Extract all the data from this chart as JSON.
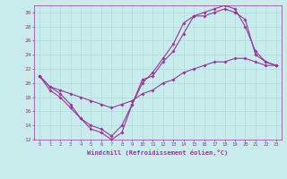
{
  "xlabel": "Windchill (Refroidissement éolien,°C)",
  "background_color": "#c8ecec",
  "line_color": "#993399",
  "grid_color": "#b0d0d0",
  "xlim": [
    -0.5,
    23.5
  ],
  "ylim": [
    12,
    31
  ],
  "xticks": [
    0,
    1,
    2,
    3,
    4,
    5,
    6,
    7,
    8,
    9,
    10,
    11,
    12,
    13,
    14,
    15,
    16,
    17,
    18,
    19,
    20,
    21,
    22,
    23
  ],
  "yticks": [
    12,
    14,
    16,
    18,
    20,
    22,
    24,
    26,
    28,
    30
  ],
  "series": [
    {
      "x": [
        0,
        1,
        2,
        3,
        4,
        5,
        6,
        7,
        8,
        9,
        10,
        11,
        12,
        13,
        14,
        15,
        16,
        17,
        18,
        19,
        20,
        21,
        22,
        23
      ],
      "y": [
        21,
        19,
        18,
        16.5,
        15,
        13.5,
        13,
        12,
        13,
        17,
        20.5,
        21,
        23,
        24.5,
        27,
        29.5,
        29.5,
        30,
        30.5,
        30,
        29,
        24,
        23,
        22.5
      ]
    },
    {
      "x": [
        0,
        1,
        2,
        3,
        4,
        5,
        6,
        7,
        8,
        9,
        10,
        11,
        12,
        13,
        14,
        15,
        16,
        17,
        18,
        19,
        20,
        21,
        22,
        23
      ],
      "y": [
        21,
        19.5,
        18.5,
        17,
        15,
        14,
        13.5,
        12.5,
        14,
        17,
        20,
        21.5,
        23.5,
        25.5,
        28.5,
        29.5,
        30,
        30.5,
        31,
        30.5,
        28,
        24.5,
        23,
        22.5
      ]
    },
    {
      "x": [
        0,
        1,
        2,
        3,
        4,
        5,
        6,
        7,
        8,
        9,
        10,
        11,
        12,
        13,
        14,
        15,
        16,
        17,
        18,
        19,
        20,
        21,
        22,
        23
      ],
      "y": [
        21,
        19.5,
        19,
        18.5,
        18,
        17.5,
        17,
        16.5,
        17,
        17.5,
        18.5,
        19,
        20,
        20.5,
        21.5,
        22,
        22.5,
        23,
        23,
        23.5,
        23.5,
        23,
        22.5,
        22.5
      ]
    }
  ]
}
